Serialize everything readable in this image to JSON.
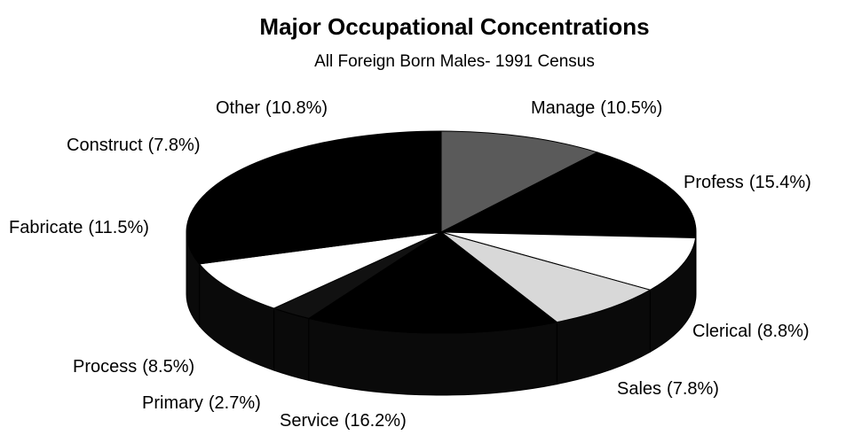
{
  "chart_data": {
    "type": "pie",
    "title": "Major Occupational Concentrations",
    "subtitle": "All Foreign Born Males- 1991 Census",
    "categories": [
      "Manage",
      "Profess",
      "Clerical",
      "Sales",
      "Service",
      "Primary",
      "Process",
      "Fabricate",
      "Construct",
      "Other"
    ],
    "values": [
      10.5,
      15.4,
      8.8,
      7.8,
      16.2,
      2.7,
      8.5,
      11.5,
      7.8,
      10.8
    ],
    "value_labels": [
      "(10.5%)",
      "(15.4%)",
      "(8.8%)",
      "(7.8%)",
      "(16.2%)",
      "(2.7%)",
      "(8.5%)",
      "(11.5%)",
      "(7.8%)",
      "(10.8%)"
    ],
    "colors": [
      "#5a5a5a",
      "#000000",
      "#ffffff",
      "#d8d8d8",
      "#000000",
      "#111111",
      "#ffffff",
      "#000000",
      "#000000",
      "#000000"
    ]
  }
}
